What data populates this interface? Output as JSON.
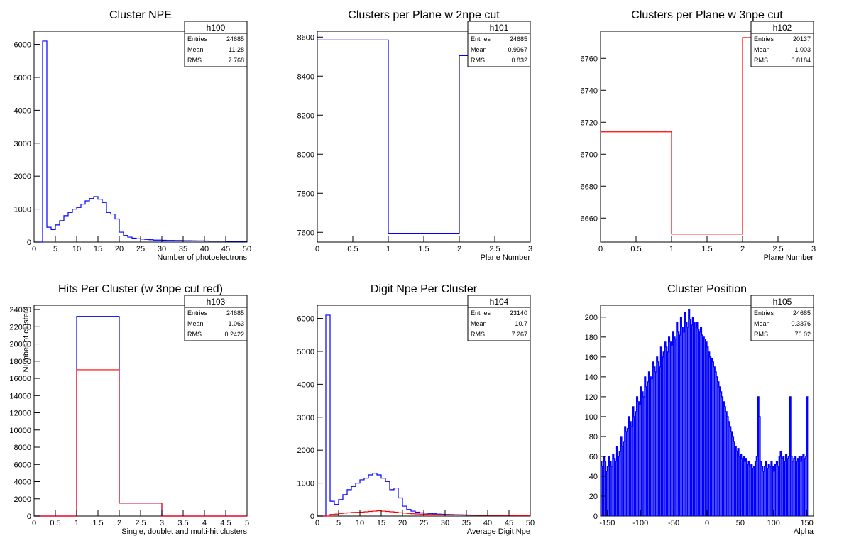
{
  "colors": {
    "blue": "#0000ff",
    "red": "#ff0000",
    "axis": "#000000"
  },
  "chart_data": [
    {
      "id": "h100",
      "type": "histogram",
      "title": "Cluster NPE",
      "xlabel": "Number of photoelectrons",
      "ylabel": "",
      "xlim": [
        0,
        50
      ],
      "ylim": [
        0,
        6400
      ],
      "xticks": [
        0,
        5,
        10,
        15,
        20,
        25,
        30,
        35,
        40,
        45,
        50
      ],
      "yticks": [
        0,
        1000,
        2000,
        3000,
        4000,
        5000,
        6000
      ],
      "stats": {
        "name": "h100",
        "rows": [
          [
            "Entries",
            "24685"
          ],
          [
            "Mean",
            "11.28"
          ],
          [
            "RMS",
            "7.768"
          ]
        ]
      },
      "series": [
        {
          "color": "blue",
          "x0": 0,
          "dx": 1,
          "values": [
            0,
            0,
            6100,
            450,
            380,
            520,
            650,
            800,
            900,
            1000,
            1050,
            1150,
            1250,
            1320,
            1380,
            1300,
            1200,
            900,
            850,
            700,
            300,
            200,
            150,
            120,
            100,
            90,
            80,
            70,
            60,
            60,
            55,
            50,
            50,
            45,
            45,
            40,
            40,
            38,
            35,
            35,
            32,
            30,
            30,
            28,
            28,
            25,
            25,
            22,
            22,
            20
          ]
        }
      ]
    },
    {
      "id": "h101",
      "type": "histogram",
      "title": "Clusters per Plane w 2npe cut",
      "xlabel": "Plane Number",
      "ylabel": "",
      "xlim": [
        0,
        3
      ],
      "ylim": [
        7550,
        8630
      ],
      "xticks": [
        0,
        0.5,
        1,
        1.5,
        2,
        2.5,
        3
      ],
      "yticks": [
        7600,
        7800,
        8000,
        8200,
        8400,
        8600
      ],
      "stats": {
        "name": "h101",
        "rows": [
          [
            "Entries",
            "24685"
          ],
          [
            "Mean",
            "0.9967"
          ],
          [
            "RMS",
            "0.832"
          ]
        ]
      },
      "series": [
        {
          "color": "blue",
          "x0": 0,
          "dx": 1,
          "values": [
            8585,
            7595,
            8505
          ]
        }
      ]
    },
    {
      "id": "h102",
      "type": "histogram",
      "title": "Clusters per Plane w 3npe cut",
      "xlabel": "Plane Number",
      "ylabel": "",
      "xlim": [
        0,
        3
      ],
      "ylim": [
        6645,
        6777
      ],
      "xticks": [
        0,
        0.5,
        1,
        1.5,
        2,
        2.5,
        3
      ],
      "yticks": [
        6660,
        6680,
        6700,
        6720,
        6740,
        6760
      ],
      "stats": {
        "name": "h102",
        "rows": [
          [
            "Entries",
            "20137"
          ],
          [
            "Mean",
            "1.003"
          ],
          [
            "RMS",
            "0.8184"
          ]
        ]
      },
      "series": [
        {
          "color": "red",
          "x0": 0,
          "dx": 1,
          "values": [
            6714,
            6650,
            6773
          ]
        }
      ]
    },
    {
      "id": "h103",
      "type": "histogram",
      "title": "Hits Per Cluster (w 3npe cut red)",
      "xlabel": "Single, doublet and multi-hit clusters",
      "ylabel": "Number of clusters",
      "xlim": [
        0,
        5
      ],
      "ylim": [
        0,
        24500
      ],
      "xticks": [
        0,
        0.5,
        1,
        1.5,
        2,
        2.5,
        3,
        3.5,
        4,
        4.5,
        5
      ],
      "yticks": [
        0,
        2000,
        4000,
        6000,
        8000,
        10000,
        12000,
        14000,
        16000,
        18000,
        20000,
        22000,
        24000
      ],
      "stats": {
        "name": "h103",
        "rows": [
          [
            "Entries",
            "24685"
          ],
          [
            "Mean",
            "1.063"
          ],
          [
            "RMS",
            "0.2422"
          ]
        ]
      },
      "series": [
        {
          "color": "blue",
          "x0": 0,
          "dx": 1,
          "values": [
            0,
            23200,
            1500,
            0,
            0
          ]
        },
        {
          "color": "red",
          "x0": 0,
          "dx": 1,
          "values": [
            0,
            17000,
            1500,
            0,
            0
          ]
        }
      ]
    },
    {
      "id": "h104",
      "type": "histogram",
      "title": "Digit Npe Per Cluster",
      "xlabel": "Average Digit Npe",
      "ylabel": "",
      "xlim": [
        0,
        50
      ],
      "ylim": [
        0,
        6400
      ],
      "xticks": [
        0,
        5,
        10,
        15,
        20,
        25,
        30,
        35,
        40,
        45,
        50
      ],
      "yticks": [
        0,
        1000,
        2000,
        3000,
        4000,
        5000,
        6000
      ],
      "stats": {
        "name": "h104",
        "rows": [
          [
            "Entries",
            "23140"
          ],
          [
            "Mean",
            "10.7"
          ],
          [
            "RMS",
            "7.267"
          ]
        ]
      },
      "series": [
        {
          "color": "blue",
          "x0": 0,
          "dx": 1,
          "values": [
            0,
            0,
            6100,
            450,
            350,
            500,
            650,
            800,
            900,
            1000,
            1100,
            1150,
            1250,
            1300,
            1250,
            1150,
            1050,
            800,
            850,
            550,
            300,
            200,
            150,
            120,
            100,
            90,
            80,
            70,
            60,
            55,
            50,
            45,
            40,
            38,
            35,
            32,
            30,
            28,
            26,
            25,
            24,
            22,
            20,
            20,
            18,
            18,
            16,
            15,
            15,
            14
          ]
        },
        {
          "color": "red",
          "x0": 0,
          "dx": 1,
          "values": [
            0,
            0,
            0,
            50,
            60,
            80,
            90,
            100,
            110,
            115,
            120,
            130,
            140,
            150,
            160,
            150,
            140,
            130,
            120,
            100,
            90,
            80,
            70,
            65,
            60,
            55,
            50,
            48,
            45,
            42,
            40,
            38,
            36,
            34,
            32,
            30,
            28,
            26,
            25,
            24,
            22,
            20,
            20,
            18,
            18,
            16,
            15,
            14,
            13,
            12
          ]
        }
      ]
    },
    {
      "id": "h105",
      "type": "histogram",
      "title": "Cluster Position",
      "xlabel": "Alpha",
      "ylabel": "",
      "xlim": [
        -160,
        160
      ],
      "ylim": [
        0,
        212
      ],
      "xticks": [
        -150,
        -100,
        -50,
        0,
        50,
        100,
        150
      ],
      "yticks": [
        0,
        20,
        40,
        60,
        80,
        100,
        120,
        140,
        160,
        180,
        200
      ],
      "stats": {
        "name": "h105",
        "rows": [
          [
            "Entries",
            "24685"
          ],
          [
            "Mean",
            "0.3376"
          ],
          [
            "RMS",
            "76.02"
          ]
        ]
      },
      "series": [
        {
          "color": "blue",
          "x0": -160,
          "dx": 2,
          "comb": true,
          "values": [
            55,
            50,
            60,
            55,
            45,
            50,
            60,
            55,
            50,
            62,
            58,
            55,
            70,
            60,
            65,
            80,
            70,
            75,
            90,
            85,
            88,
            100,
            95,
            90,
            110,
            100,
            105,
            120,
            115,
            112,
            130,
            125,
            120,
            140,
            130,
            135,
            145,
            140,
            138,
            155,
            150,
            145,
            160,
            155,
            150,
            170,
            160,
            165,
            175,
            170,
            165,
            180,
            175,
            172,
            185,
            180,
            178,
            195,
            185,
            182,
            200,
            190,
            185,
            205,
            195,
            190,
            208,
            198,
            192,
            200,
            195,
            190,
            195,
            188,
            185,
            190,
            182,
            180,
            178,
            175,
            170,
            165,
            160,
            158,
            155,
            150,
            145,
            140,
            135,
            130,
            125,
            120,
            115,
            110,
            105,
            100,
            95,
            90,
            85,
            80,
            75,
            70,
            65,
            68,
            60,
            62,
            58,
            60,
            55,
            58,
            52,
            55,
            50,
            52,
            48,
            50,
            55,
            60,
            120,
            100,
            55,
            50,
            45,
            50,
            55,
            48,
            52,
            50,
            55,
            50,
            45,
            52,
            55,
            50,
            60,
            65,
            58,
            60,
            55,
            62,
            58,
            60,
            120,
            60,
            55,
            58,
            60,
            55,
            58,
            60,
            55,
            60,
            62,
            58,
            60,
            120
          ]
        }
      ]
    }
  ]
}
